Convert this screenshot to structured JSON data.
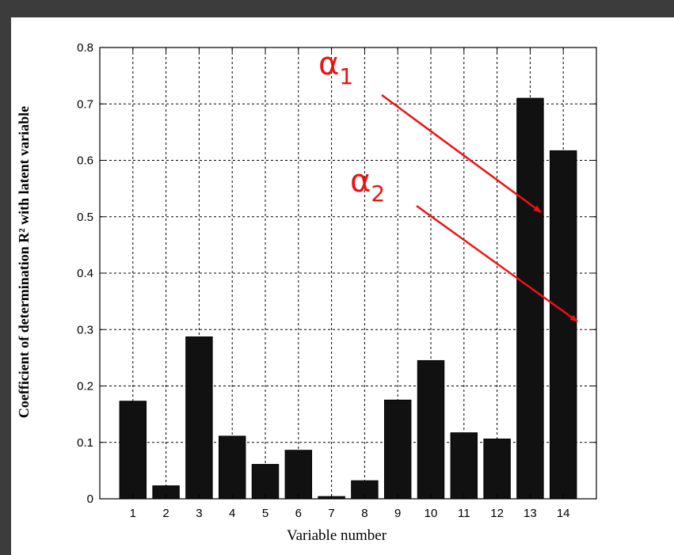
{
  "chart_data": {
    "type": "bar",
    "categories": [
      "1",
      "2",
      "3",
      "4",
      "5",
      "6",
      "7",
      "8",
      "9",
      "10",
      "11",
      "12",
      "13",
      "14"
    ],
    "values": [
      0.173,
      0.023,
      0.287,
      0.111,
      0.061,
      0.086,
      0.004,
      0.032,
      0.175,
      0.245,
      0.117,
      0.106,
      0.71,
      0.617
    ],
    "xlabel": "Variable number",
    "ylabel": "Coefficient of determination R² with latent variable",
    "ylim": [
      0,
      0.8
    ],
    "yticks": [
      "0",
      "0.1",
      "0.2",
      "0.3",
      "0.4",
      "0.5",
      "0.6",
      "0.7",
      "0.8"
    ],
    "grid": true,
    "bar_color": "#111111",
    "annotations": [
      {
        "symbol": "α",
        "subscript": "1",
        "points_to": "13",
        "color": "#ee1111"
      },
      {
        "symbol": "α",
        "subscript": "2",
        "points_to": "14",
        "color": "#ee1111"
      }
    ]
  },
  "colors": {
    "background": "#3c3c3c",
    "figure": "#ffffff",
    "annotation": "#ee1111"
  }
}
